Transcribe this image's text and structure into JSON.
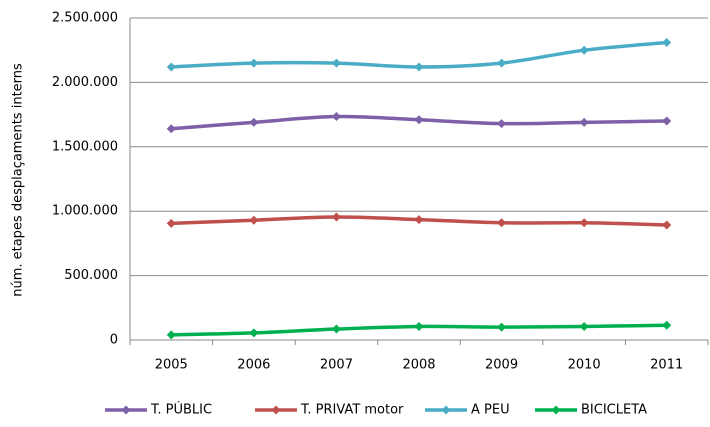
{
  "chart_data": {
    "type": "line",
    "y_label": "núm. etapes desplaçaments interns",
    "categories": [
      "2005",
      "2006",
      "2007",
      "2008",
      "2009",
      "2010",
      "2011"
    ],
    "series": [
      {
        "name": "T. PÚBLIC",
        "color": "#7e60a8",
        "values": [
          1640000,
          1690000,
          1735000,
          1710000,
          1680000,
          1690000,
          1700000
        ]
      },
      {
        "name": "T. PRIVAT motor",
        "color": "#c0504d",
        "values": [
          905000,
          930000,
          955000,
          935000,
          910000,
          910000,
          893000
        ]
      },
      {
        "name": "A PEU",
        "color": "#4bacc6",
        "values": [
          2120000,
          2150000,
          2150000,
          2120000,
          2150000,
          2250000,
          2310000
        ]
      },
      {
        "name": "BICICLETA",
        "color": "#00b050",
        "values": [
          40000,
          55000,
          85000,
          105000,
          100000,
          105000,
          115000
        ]
      }
    ],
    "ylim": [
      0,
      2500000
    ],
    "yticks": [
      0,
      {
        "value": 500000,
        "label": "500.000"
      },
      {
        "value": 1000000,
        "label": "1.000.000"
      },
      {
        "value": 1500000,
        "label": "1.500.000"
      },
      {
        "value": 2000000,
        "label": "2.000.000"
      },
      {
        "value": 2500000,
        "label": "2.500.000"
      }
    ],
    "grid": true,
    "smooth": true,
    "legend": "bottom"
  }
}
